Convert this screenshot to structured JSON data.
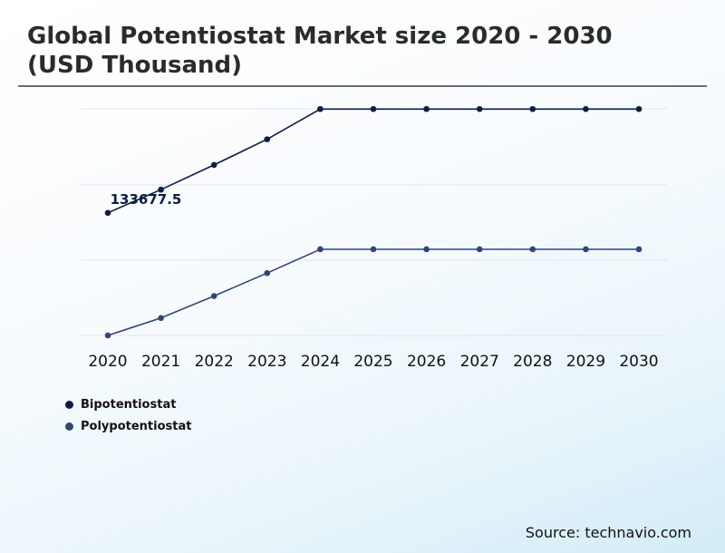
{
  "title": "Global Potentiostat Market size 2020 - 2030 (USD Thousand)",
  "source": "Source: technavio.com",
  "colors": {
    "series_1": "#0b1e45",
    "series_2": "#2f4677",
    "grid": "#e2e6ea"
  },
  "chart_data": {
    "type": "line",
    "title": "Global Potentiostat Market size 2020 - 2030 (USD Thousand)",
    "xlabel": "",
    "ylabel": "",
    "grid": true,
    "legend_position": "bottom-left",
    "x": [
      "2020",
      "2021",
      "2022",
      "2023",
      "2024",
      "2025",
      "2026",
      "2027",
      "2028",
      "2029",
      "2030"
    ],
    "ylim": [
      0,
      270000
    ],
    "series": [
      {
        "name": "Bipotentiostat",
        "values": [
          133677.5,
          159000,
          186000,
          214000,
          247000,
          247000,
          247000,
          247000,
          247000,
          247000,
          247000
        ],
        "data_labels": {
          "0": "133677.5"
        }
      },
      {
        "name": "Polypotentiostat",
        "values": [
          0,
          19000,
          43000,
          68000,
          94000,
          94000,
          94000,
          94000,
          94000,
          94000,
          94000
        ]
      }
    ]
  }
}
